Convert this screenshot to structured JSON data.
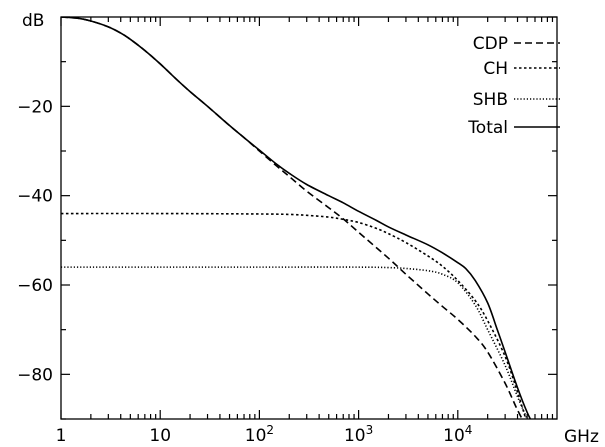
{
  "chart_data": {
    "type": "line",
    "title": "",
    "xlabel": "GHz",
    "ylabel": "dB",
    "xscale": "log",
    "xlim": [
      1,
      100000
    ],
    "ylim": [
      -90,
      0
    ],
    "x_ticks": [
      {
        "value": 1,
        "label": "1"
      },
      {
        "value": 10,
        "label": "10"
      },
      {
        "value": 100,
        "label": "10",
        "exp": "2"
      },
      {
        "value": 1000,
        "label": "10",
        "exp": "3"
      },
      {
        "value": 10000,
        "label": "10",
        "exp": "4"
      }
    ],
    "y_ticks": [
      {
        "value": -20,
        "label": "−20"
      },
      {
        "value": -40,
        "label": "−40"
      },
      {
        "value": -60,
        "label": "−60"
      },
      {
        "value": -80,
        "label": "−80"
      }
    ],
    "grid": false,
    "legend_position": "top-right",
    "series": [
      {
        "name": "CDP",
        "style": "dashed",
        "x": [
          1,
          1.5,
          2,
          3,
          4,
          5,
          7,
          10,
          15,
          20,
          30,
          50,
          70,
          100,
          150,
          200,
          300,
          500,
          700,
          1000,
          2000,
          3000,
          5000,
          7000,
          10000,
          15000,
          20000,
          30000,
          40000,
          50000
        ],
        "y": [
          0,
          -0.3,
          -0.9,
          -2.2,
          -3.6,
          -5.0,
          -7.5,
          -10.5,
          -14.2,
          -16.7,
          -20.0,
          -24.3,
          -27.0,
          -30.0,
          -33.4,
          -35.7,
          -39.0,
          -42.7,
          -45.2,
          -48.2,
          -54.0,
          -57.6,
          -62.0,
          -64.8,
          -67.7,
          -71.5,
          -75.0,
          -82.0,
          -88.0,
          -92.0
        ]
      },
      {
        "name": "CH",
        "style": "dotted",
        "x": [
          1,
          10,
          100,
          200,
          300,
          500,
          700,
          1000,
          1500,
          2000,
          3000,
          5000,
          7000,
          10000,
          15000,
          20000,
          30000,
          40000,
          50000
        ],
        "y": [
          -44,
          -44,
          -44.1,
          -44.2,
          -44.4,
          -44.8,
          -45.3,
          -46.0,
          -47.3,
          -48.5,
          -50.5,
          -53.5,
          -55.8,
          -59.0,
          -63.5,
          -68.0,
          -76.0,
          -84.0,
          -91.0
        ]
      },
      {
        "name": "SHB",
        "style": "dotted-fine",
        "x": [
          1,
          10,
          100,
          1000,
          2000,
          3000,
          5000,
          7000,
          10000,
          15000,
          20000,
          30000,
          40000,
          50000,
          55000
        ],
        "y": [
          -56,
          -56,
          -56,
          -56,
          -56.1,
          -56.3,
          -56.8,
          -57.6,
          -59.5,
          -64.5,
          -70.0,
          -78.0,
          -85.0,
          -90.0,
          -92.5
        ]
      },
      {
        "name": "Total",
        "style": "solid",
        "x": [
          1,
          1.5,
          2,
          3,
          4,
          5,
          7,
          10,
          15,
          20,
          30,
          50,
          70,
          100,
          150,
          200,
          300,
          500,
          700,
          1000,
          1500,
          2000,
          3000,
          5000,
          7000,
          10000,
          12000,
          15000,
          20000,
          25000,
          30000,
          40000,
          50000,
          60000
        ],
        "y": [
          0,
          -0.3,
          -0.9,
          -2.2,
          -3.6,
          -5.0,
          -7.5,
          -10.5,
          -14.2,
          -16.7,
          -20.0,
          -24.3,
          -27.0,
          -29.8,
          -33.0,
          -35.0,
          -37.5,
          -40.0,
          -41.6,
          -43.5,
          -45.5,
          -47.0,
          -48.8,
          -51.0,
          -52.8,
          -55.0,
          -56.3,
          -59.0,
          -64.0,
          -70.0,
          -75.0,
          -83.0,
          -88.5,
          -92.0
        ]
      }
    ]
  }
}
